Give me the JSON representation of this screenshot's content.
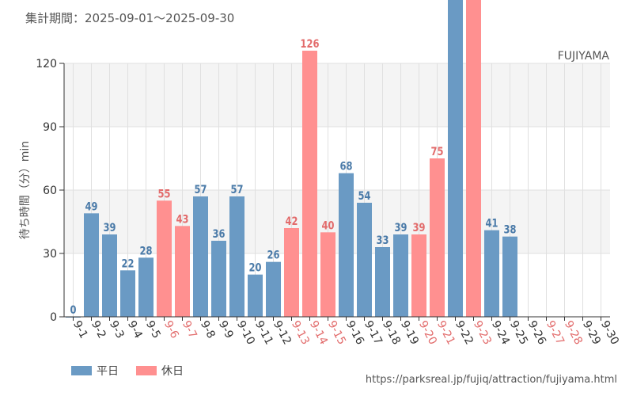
{
  "header": {
    "period": "集計期間：2025-09-01～2025-09-30",
    "url": "https://parksreal.jp/fujiq/attraction/fujiyama.html"
  },
  "legend": {
    "weekday_label": "平日",
    "holiday_label": "休日"
  },
  "colors": {
    "weekday": "#6a9ac4",
    "weekday_text": "#4a7aa8",
    "holiday": "#ff9090",
    "holiday_text": "#e26b6b",
    "band": "#f4f4f4",
    "grid": "#e0e0e0",
    "axis": "#333333",
    "text": "#555555"
  },
  "chart_data": {
    "type": "bar",
    "title": "FUJIYAMA",
    "xlabel": "",
    "ylabel": "待ち時間（分）min",
    "ylim": [
      0,
      120
    ],
    "yticks": [
      0,
      30,
      60,
      90,
      120
    ],
    "categories": [
      "9-1",
      "9-2",
      "9-3",
      "9-4",
      "9-5",
      "9-6",
      "9-7",
      "9-8",
      "9-9",
      "9-10",
      "9-11",
      "9-12",
      "9-13",
      "9-14",
      "9-15",
      "9-16",
      "9-17",
      "9-18",
      "9-19",
      "9-20",
      "9-21",
      "9-22",
      "9-23",
      "9-24",
      "9-25",
      "9-26",
      "9-27",
      "9-28",
      "9-29",
      "9-30"
    ],
    "values": [
      0,
      49,
      39,
      22,
      28,
      55,
      43,
      57,
      36,
      57,
      20,
      26,
      42,
      126,
      40,
      68,
      54,
      33,
      39,
      39,
      75,
      null,
      null,
      41,
      38,
      null,
      null,
      null,
      null,
      null
    ],
    "clipped": [
      false,
      false,
      false,
      false,
      false,
      false,
      false,
      false,
      false,
      false,
      false,
      false,
      false,
      false,
      false,
      false,
      false,
      false,
      false,
      false,
      false,
      true,
      true,
      false,
      false,
      false,
      false,
      false,
      false,
      false
    ],
    "holiday": [
      false,
      false,
      false,
      false,
      false,
      true,
      true,
      false,
      false,
      false,
      false,
      false,
      true,
      true,
      true,
      false,
      false,
      false,
      false,
      true,
      true,
      false,
      true,
      false,
      false,
      false,
      true,
      true,
      false,
      false
    ],
    "labels": [
      "0",
      "49",
      "39",
      "22",
      "28",
      "55",
      "43",
      "57",
      "36",
      "57",
      "20",
      "26",
      "42",
      "126",
      "40",
      "68",
      "54",
      "33",
      "39",
      "39",
      "75",
      "",
      "",
      "41",
      "38",
      "",
      "",
      "",
      "",
      ""
    ]
  }
}
